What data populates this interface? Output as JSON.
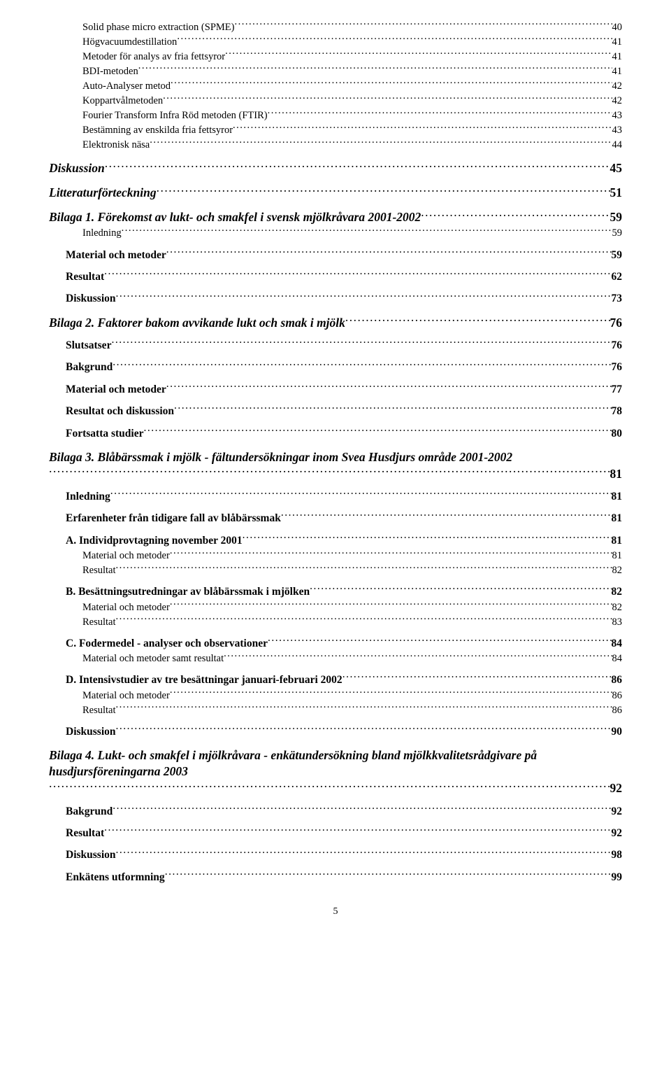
{
  "pageNumber": "5",
  "toc": [
    {
      "level": 3,
      "label": "Solid phase micro extraction (SPME)",
      "page": "40"
    },
    {
      "level": 3,
      "label": "Högvacuumdestillation",
      "page": "41"
    },
    {
      "level": 3,
      "label": "Metoder för analys av fria fettsyror",
      "page": "41"
    },
    {
      "level": 3,
      "label": "BDI-metoden",
      "page": "41"
    },
    {
      "level": 3,
      "label": "Auto-Analyser metod",
      "page": "42"
    },
    {
      "level": 3,
      "label": "Koppartvålmetoden",
      "page": "42"
    },
    {
      "level": 3,
      "label": "Fourier Transform Infra Röd metoden (FTIR)",
      "page": "43"
    },
    {
      "level": 3,
      "label": "Bestämning av enskilda fria fettsyror",
      "page": "43"
    },
    {
      "level": 3,
      "label": "Elektronisk näsa",
      "page": "44"
    },
    {
      "level": 1,
      "label": "Diskussion",
      "page": "45"
    },
    {
      "level": 1,
      "label": "Litteraturförteckning",
      "page": "51"
    },
    {
      "level": 1,
      "label": "Bilaga 1. Förekomst av lukt- och smakfel i svensk mjölkråvara 2001-2002",
      "page": "59"
    },
    {
      "level": 3,
      "label": "Inledning",
      "page": "59"
    },
    {
      "level": 2,
      "label": "Material och metoder",
      "page": "59"
    },
    {
      "level": 2,
      "label": "Resultat",
      "page": "62"
    },
    {
      "level": 2,
      "label": "Diskussion",
      "page": "73"
    },
    {
      "level": 1,
      "label": "Bilaga 2. Faktorer bakom avvikande lukt och smak i mjölk",
      "page": "76"
    },
    {
      "level": 2,
      "label": "Slutsatser",
      "page": "76"
    },
    {
      "level": 2,
      "label": "Bakgrund",
      "page": "76"
    },
    {
      "level": 2,
      "label": "Material och metoder",
      "page": "77"
    },
    {
      "level": 2,
      "label": "Resultat och diskussion",
      "page": "78"
    },
    {
      "level": 2,
      "label": "Fortsatta studier",
      "page": "80"
    },
    {
      "level": 1,
      "label": "Bilaga 3. Blåbärssmak i mjölk - fältundersökningar inom Svea Husdjurs område 2001-2002",
      "page": "81"
    },
    {
      "level": 2,
      "label": "Inledning",
      "page": "81"
    },
    {
      "level": 2,
      "label": "Erfarenheter från tidigare fall av blåbärssmak",
      "page": "81"
    },
    {
      "level": 2,
      "label": "A. Individprovtagning november 2001",
      "page": "81"
    },
    {
      "level": 3,
      "label": "Material och metoder",
      "page": "81"
    },
    {
      "level": 3,
      "label": "Resultat",
      "page": "82"
    },
    {
      "level": 2,
      "label": "B. Besättningsutredningar av blåbärssmak i mjölken",
      "page": "82"
    },
    {
      "level": 3,
      "label": "Material och metoder",
      "page": "82"
    },
    {
      "level": 3,
      "label": "Resultat",
      "page": "83"
    },
    {
      "level": 2,
      "label": "C. Fodermedel - analyser och observationer",
      "page": "84"
    },
    {
      "level": 3,
      "label": "Material och metoder samt resultat",
      "page": "84"
    },
    {
      "level": 2,
      "label": "D. Intensivstudier av tre besättningar januari-februari 2002",
      "page": "86"
    },
    {
      "level": 3,
      "label": "Material och metoder",
      "page": "86"
    },
    {
      "level": 3,
      "label": "Resultat",
      "page": "86"
    },
    {
      "level": 2,
      "label": "Diskussion",
      "page": "90"
    },
    {
      "level": 1,
      "label": "Bilaga 4. Lukt- och smakfel i mjölkråvara - enkätundersökning bland mjölkkvalitetsrådgivare på husdjursföreningarna 2003",
      "page": "92"
    },
    {
      "level": 2,
      "label": "Bakgrund",
      "page": "92"
    },
    {
      "level": 2,
      "label": "Resultat",
      "page": "92"
    },
    {
      "level": 2,
      "label": "Diskussion",
      "page": "98"
    },
    {
      "level": 2,
      "label": "Enkätens utformning",
      "page": "99"
    }
  ]
}
